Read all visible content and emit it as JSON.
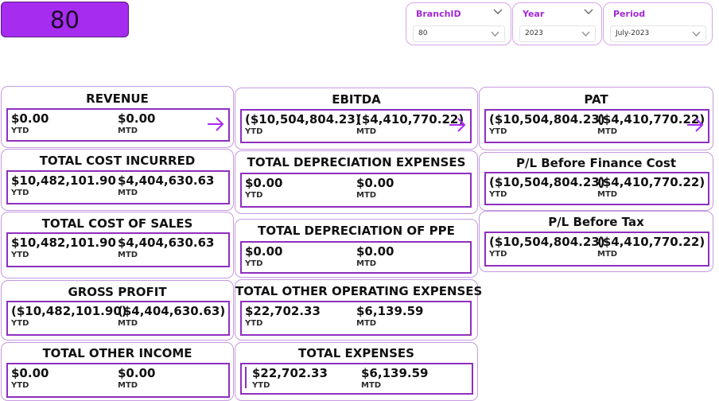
{
  "branch_badge": "80",
  "filters": {
    "branch": {
      "label": "BranchID",
      "value": "80"
    },
    "year": {
      "label": "Year",
      "value": "2023"
    },
    "period": {
      "label": "Period",
      "value": "July-2023"
    }
  },
  "captions": {
    "ytd": "YTD",
    "mtd": "MTD"
  },
  "colors": {
    "accent": "#a62cf0",
    "border": "#8f2fbf",
    "card_border": "#c69ae0"
  },
  "cards": {
    "revenue": {
      "title": "REVENUE",
      "ytd": "$0.00",
      "mtd": "$0.00"
    },
    "ebitda": {
      "title": "EBITDA",
      "ytd": "($10,504,804.23)",
      "mtd": "($4,410,770.22)"
    },
    "pat": {
      "title": "PAT",
      "ytd": "($10,504,804.23)",
      "mtd": "($4,410,770.22)"
    },
    "total_cost_incurred": {
      "title": "TOTAL COST INCURRED",
      "ytd": "$10,482,101.90",
      "mtd": "$4,404,630.63"
    },
    "total_depreciation_expenses": {
      "title": "TOTAL DEPRECIATION EXPENSES",
      "ytd": "$0.00",
      "mtd": "$0.00"
    },
    "pl_before_finance_cost": {
      "title": "P/L Before Finance Cost",
      "ytd": "($10,504,804.23)",
      "mtd": "($4,410,770.22)"
    },
    "total_cost_of_sales": {
      "title": "TOTAL COST OF SALES",
      "ytd": "$10,482,101.90",
      "mtd": "$4,404,630.63"
    },
    "total_depreciation_of_ppe": {
      "title": "TOTAL DEPRECIATION OF PPE",
      "ytd": "$0.00",
      "mtd": "$0.00"
    },
    "pl_before_tax": {
      "title": "P/L Before Tax",
      "ytd": "($10,504,804.23)",
      "mtd": "($4,410,770.22)"
    },
    "gross_profit": {
      "title": "GROSS PROFIT",
      "ytd": "($10,482,101.90)",
      "mtd": "($4,404,630.63)"
    },
    "total_other_operating_expenses": {
      "title": "TOTAL OTHER OPERATING EXPENSES",
      "ytd": "$22,702.33",
      "mtd": "$6,139.59"
    },
    "total_other_income": {
      "title": "TOTAL OTHER INCOME",
      "ytd": "$0.00",
      "mtd": "$0.00"
    },
    "total_expenses": {
      "title": "TOTAL EXPENSES",
      "ytd": "$22,702.33",
      "mtd": "$6,139.59"
    }
  }
}
